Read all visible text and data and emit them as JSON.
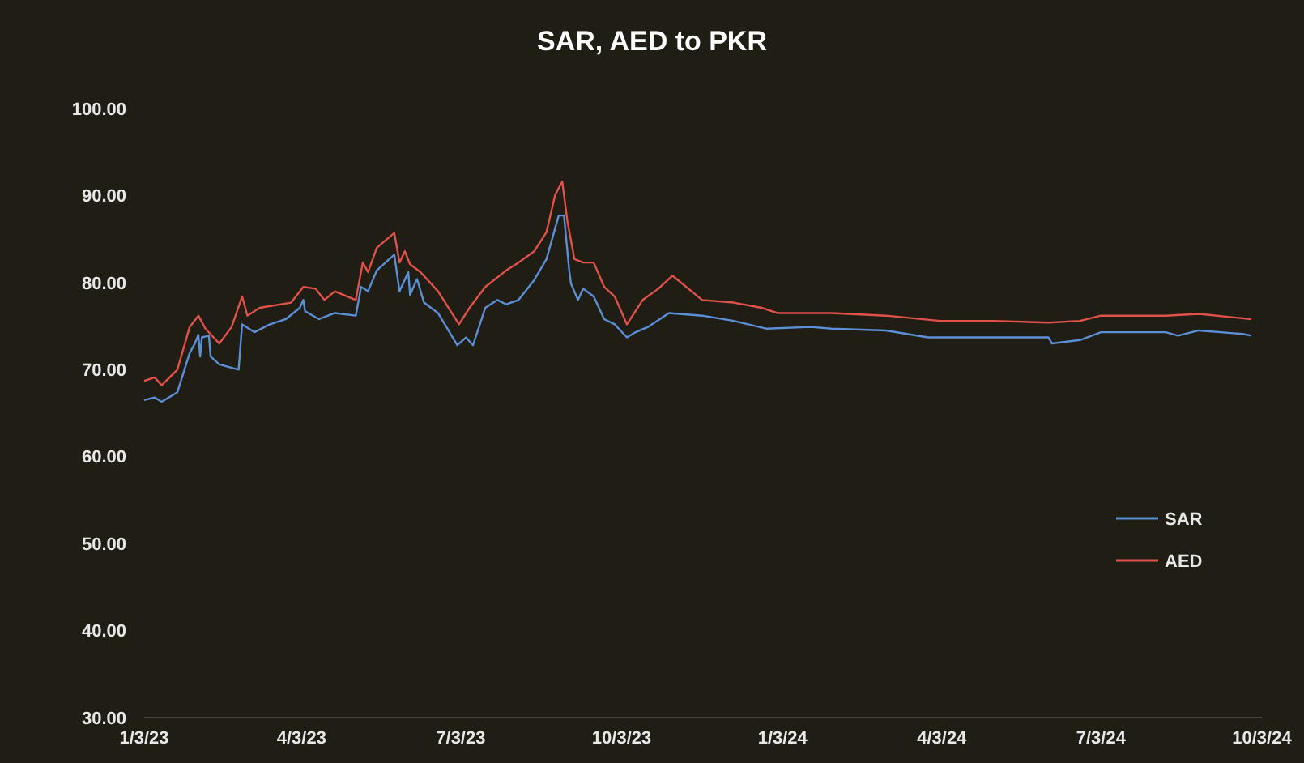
{
  "chart_data": {
    "type": "line",
    "title": "SAR, AED to PKR",
    "xlim": [
      "2023-01-03",
      "2024-10-03"
    ],
    "xticks": [
      {
        "value": "2023-01-03",
        "label": "1/3/23"
      },
      {
        "value": "2023-04-03",
        "label": "4/3/23"
      },
      {
        "value": "2023-07-03",
        "label": "7/3/23"
      },
      {
        "value": "2023-10-03",
        "label": "10/3/23"
      },
      {
        "value": "2024-01-03",
        "label": "1/3/24"
      },
      {
        "value": "2024-04-03",
        "label": "4/3/24"
      },
      {
        "value": "2024-07-03",
        "label": "7/3/24"
      },
      {
        "value": "2024-10-03",
        "label": "10/3/24"
      }
    ],
    "ylim": [
      30,
      100
    ],
    "yticks": [
      {
        "value": 30,
        "label": "30.00"
      },
      {
        "value": 40,
        "label": "40.00"
      },
      {
        "value": 50,
        "label": "50.00"
      },
      {
        "value": 60,
        "label": "60.00"
      },
      {
        "value": 70,
        "label": "70.00"
      },
      {
        "value": 80,
        "label": "80.00"
      },
      {
        "value": 90,
        "label": "90.00"
      },
      {
        "value": 100,
        "label": "100.00"
      }
    ],
    "grid": false,
    "legend": "right",
    "marker": "none",
    "line_style": "solid",
    "series": [
      {
        "name": "SAR",
        "color": "#5b8fd6",
        "x": [
          "2023-01-03",
          "2023-01-09",
          "2023-01-13",
          "2023-01-22",
          "2023-01-29",
          "2023-02-01",
          "2023-02-03",
          "2023-02-04",
          "2023-02-05",
          "2023-02-09",
          "2023-02-10",
          "2023-02-15",
          "2023-02-26",
          "2023-02-28",
          "2023-03-07",
          "2023-03-16",
          "2023-03-25",
          "2023-04-02",
          "2023-04-04",
          "2023-04-05",
          "2023-04-13",
          "2023-04-22",
          "2023-05-04",
          "2023-05-07",
          "2023-05-11",
          "2023-05-16",
          "2023-05-26",
          "2023-05-29",
          "2023-06-03",
          "2023-06-04",
          "2023-06-08",
          "2023-06-12",
          "2023-06-20",
          "2023-07-01",
          "2023-07-06",
          "2023-07-10",
          "2023-07-17",
          "2023-07-24",
          "2023-07-29",
          "2023-08-05",
          "2023-08-14",
          "2023-08-21",
          "2023-08-28",
          "2023-08-31",
          "2023-09-03",
          "2023-09-04",
          "2023-09-08",
          "2023-09-11",
          "2023-09-17",
          "2023-09-23",
          "2023-09-29",
          "2023-10-06",
          "2023-10-11",
          "2023-10-18",
          "2023-10-30",
          "2023-11-18",
          "2023-12-06",
          "2023-12-25",
          "2024-01-19",
          "2024-01-31",
          "2024-03-02",
          "2024-03-26",
          "2024-05-02",
          "2024-06-03",
          "2024-06-05",
          "2024-06-21",
          "2024-07-03",
          "2024-08-09",
          "2024-08-16",
          "2024-08-28",
          "2024-09-22",
          "2024-09-27"
        ],
        "values": [
          66.5,
          66.8,
          66.3,
          67.4,
          71.9,
          73,
          74,
          71.5,
          73.7,
          73.9,
          71.5,
          70.6,
          70,
          75.2,
          74.3,
          75.2,
          75.8,
          77.1,
          78,
          76.7,
          75.8,
          76.5,
          76.2,
          79.5,
          79,
          81.4,
          83.2,
          79,
          81.2,
          78.6,
          80.4,
          77.7,
          76.5,
          72.8,
          73.7,
          72.8,
          77.1,
          78,
          77.5,
          78,
          80.3,
          82.7,
          87.7,
          87.7,
          81.4,
          79.9,
          78,
          79.3,
          78.4,
          75.8,
          75.2,
          73.7,
          74.3,
          74.9,
          76.5,
          76.2,
          75.6,
          74.7,
          74.9,
          74.7,
          74.5,
          73.7,
          73.7,
          73.7,
          73,
          73.4,
          74.3,
          74.3,
          73.9,
          74.5,
          74.1,
          73.9
        ]
      },
      {
        "name": "AED",
        "color": "#e0524a",
        "x": [
          "2023-01-03",
          "2023-01-09",
          "2023-01-13",
          "2023-01-22",
          "2023-01-29",
          "2023-02-03",
          "2023-02-07",
          "2023-02-15",
          "2023-02-22",
          "2023-02-28",
          "2023-03-03",
          "2023-03-10",
          "2023-03-28",
          "2023-04-04",
          "2023-04-11",
          "2023-04-16",
          "2023-04-22",
          "2023-05-04",
          "2023-05-08",
          "2023-05-11",
          "2023-05-16",
          "2023-05-26",
          "2023-05-29",
          "2023-06-01",
          "2023-06-04",
          "2023-06-10",
          "2023-06-20",
          "2023-07-02",
          "2023-07-08",
          "2023-07-17",
          "2023-07-29",
          "2023-08-05",
          "2023-08-14",
          "2023-08-21",
          "2023-08-26",
          "2023-08-30",
          "2023-09-02",
          "2023-09-06",
          "2023-09-11",
          "2023-09-17",
          "2023-09-23",
          "2023-09-29",
          "2023-10-06",
          "2023-10-15",
          "2023-10-24",
          "2023-11-01",
          "2023-11-12",
          "2023-11-18",
          "2023-12-06",
          "2023-12-22",
          "2023-12-31",
          "2024-01-19",
          "2024-01-31",
          "2024-03-02",
          "2024-04-02",
          "2024-05-02",
          "2024-06-03",
          "2024-06-21",
          "2024-07-03",
          "2024-08-09",
          "2024-08-28",
          "2024-09-27"
        ],
        "values": [
          68.7,
          69.1,
          68.2,
          70,
          74.9,
          76.2,
          74.7,
          73,
          74.9,
          78.4,
          76.2,
          77.1,
          77.7,
          79.5,
          79.3,
          78,
          79,
          78,
          82.3,
          81.2,
          84,
          85.7,
          82.3,
          83.6,
          82.1,
          81.2,
          79,
          75.2,
          77.1,
          79.5,
          81.4,
          82.3,
          83.6,
          85.8,
          90.1,
          91.6,
          87,
          82.7,
          82.3,
          82.3,
          79.5,
          78.4,
          75.2,
          78,
          79.3,
          80.8,
          79,
          78,
          77.7,
          77.1,
          76.5,
          76.5,
          76.5,
          76.2,
          75.6,
          75.6,
          75.4,
          75.6,
          76.2,
          76.2,
          76.4,
          75.8
        ]
      }
    ]
  }
}
